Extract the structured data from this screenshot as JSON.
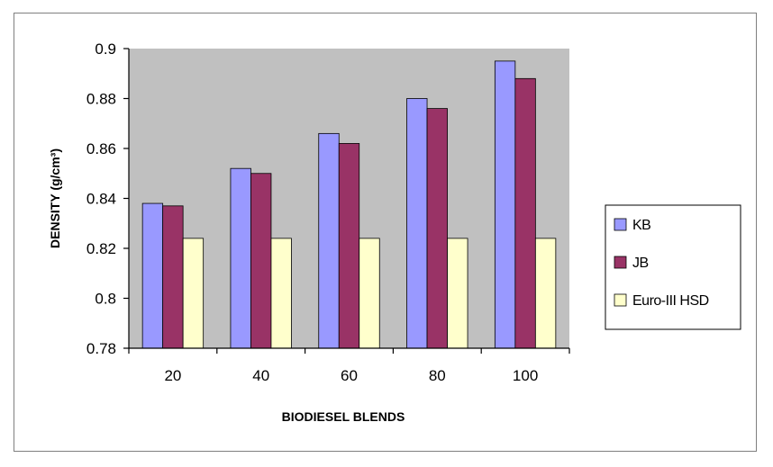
{
  "chart_data": {
    "type": "bar",
    "title": "",
    "xlabel": "BIODIESEL BLENDS",
    "ylabel": "DENSITY  (g/cm³)",
    "categories": [
      "20",
      "40",
      "60",
      "80",
      "100"
    ],
    "series": [
      {
        "name": "KB",
        "values": [
          0.838,
          0.852,
          0.866,
          0.88,
          0.895
        ]
      },
      {
        "name": "JB",
        "values": [
          0.837,
          0.85,
          0.862,
          0.876,
          0.888
        ]
      },
      {
        "name": "Euro-III HSD",
        "values": [
          0.824,
          0.824,
          0.824,
          0.824,
          0.824
        ]
      }
    ],
    "ylim": [
      0.78,
      0.9
    ],
    "yticks": [
      0.78,
      0.8,
      0.82,
      0.84,
      0.86,
      0.88,
      0.9
    ],
    "ytick_labels": [
      "0.78",
      "0.8",
      "0.82",
      "0.84",
      "0.86",
      "0.88",
      "0.9"
    ],
    "grid": false,
    "legend_position": "right",
    "colors": {
      "plot_background": "#c0c0c0",
      "series": [
        "#9999ff",
        "#993366",
        "#ffffcc"
      ],
      "bar_border": "#000000"
    }
  }
}
